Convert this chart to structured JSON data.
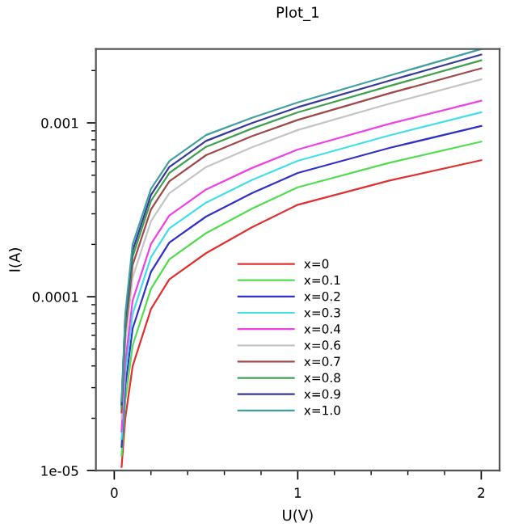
{
  "chart_data": {
    "type": "line",
    "title": "Plot_1",
    "xlabel": "U(V)",
    "ylabel": "I(A)",
    "x": [
      0.04,
      0.06,
      0.1,
      0.2,
      0.3,
      0.5,
      0.75,
      1,
      1.5,
      2
    ],
    "series": [
      {
        "name": "x=0",
        "color": "#e03030",
        "values": [
          1.05e-05,
          2e-05,
          3.98e-05,
          8.5e-05,
          0.000126,
          0.000178,
          0.000251,
          0.000338,
          0.000466,
          0.00061
        ]
      },
      {
        "name": "x=0.1",
        "color": "#50dd50",
        "values": [
          1.22e-05,
          2.52e-05,
          5.24e-05,
          0.000111,
          0.000164,
          0.000232,
          0.000321,
          0.000426,
          0.00059,
          0.00078
        ]
      },
      {
        "name": "x=0.2",
        "color": "#3030c8",
        "values": [
          1.37e-05,
          3.06e-05,
          6.56e-05,
          0.000139,
          0.000205,
          0.000289,
          0.000394,
          0.000515,
          0.000718,
          0.00096
        ]
      },
      {
        "name": "x=0.3",
        "color": "#40e0e8",
        "values": [
          1.52e-05,
          3.61e-05,
          7.96e-05,
          0.000169,
          0.000247,
          0.000348,
          0.000469,
          0.000605,
          0.000847,
          0.00115
        ]
      },
      {
        "name": "x=0.4",
        "color": "#f040e8",
        "values": [
          1.68e-05,
          4.2e-05,
          9.5e-05,
          0.000201,
          0.000293,
          0.000414,
          0.00055,
          0.000703,
          0.000989,
          0.00134
        ]
      },
      {
        "name": "x=0.6",
        "color": "#c4c4c4",
        "values": [
          1.98e-05,
          5.47e-05,
          0.000129,
          0.000272,
          0.000394,
          0.000557,
          0.000724,
          0.00091,
          0.00129,
          0.00178
        ]
      },
      {
        "name": "x=0.7",
        "color": "#a04848",
        "values": [
          2.16e-05,
          6.28e-05,
          0.000152,
          0.000318,
          0.000461,
          0.000652,
          0.000838,
          0.00104,
          0.00148,
          0.00206
        ]
      },
      {
        "name": "x=0.8",
        "color": "#40a050",
        "values": [
          2.3e-05,
          6.92e-05,
          0.00017,
          0.000356,
          0.000515,
          0.000728,
          0.000927,
          0.00115,
          0.00163,
          0.00229
        ]
      },
      {
        "name": "x=0.9",
        "color": "#383898",
        "values": [
          2.4e-05,
          7.41e-05,
          0.000184,
          0.000385,
          0.000557,
          0.000787,
          0.000998,
          0.00123,
          0.00175,
          0.00247
        ]
      },
      {
        "name": "x=1.0",
        "color": "#40a0a0",
        "values": [
          2.51e-05,
          7.94e-05,
          0.0002,
          0.000417,
          0.000603,
          0.000851,
          0.00107,
          0.00131,
          0.00187,
          0.00266
        ]
      }
    ],
    "log": "y",
    "xlim": [
      -0.1,
      2.1
    ],
    "ylim": [
      1e-05,
      0.00266
    ],
    "xticks": [
      0,
      1,
      2
    ],
    "yticks": [
      {
        "value": 1e-05,
        "label": "1e-05"
      },
      {
        "value": 0.0001,
        "label": "0.0001"
      },
      {
        "value": 0.001,
        "label": "0.001"
      }
    ],
    "legend": "bottom",
    "grid": false
  }
}
